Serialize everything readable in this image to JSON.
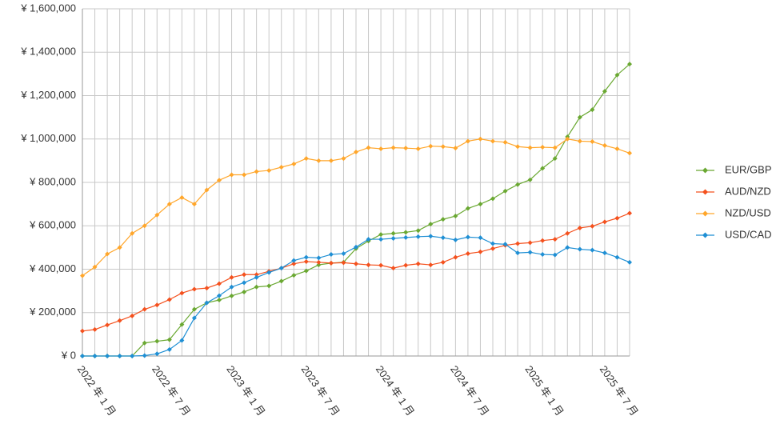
{
  "chart_data": {
    "type": "line",
    "categories": [
      "2022 年 1 月",
      null,
      null,
      null,
      null,
      null,
      "2022 年 7 月",
      null,
      null,
      null,
      null,
      null,
      "2023 年 1 月",
      null,
      null,
      null,
      null,
      null,
      "2023 年 7 月",
      null,
      null,
      null,
      null,
      null,
      "2024 年 1 月",
      null,
      null,
      null,
      null,
      null,
      "2024 年 7 月",
      null,
      null,
      null,
      null,
      null,
      "2025 年 1 月",
      null,
      null,
      null,
      null,
      null,
      "2025 年 7 月",
      null,
      null
    ],
    "ylim": [
      0,
      1600000
    ],
    "yticks": [
      {
        "value": 0,
        "label": "¥ 0"
      },
      {
        "value": 200000,
        "label": "¥ 200,000"
      },
      {
        "value": 400000,
        "label": "¥ 400,000"
      },
      {
        "value": 600000,
        "label": "¥ 600,000"
      },
      {
        "value": 800000,
        "label": "¥ 800,000"
      },
      {
        "value": 1000000,
        "label": "¥ 1,000,000"
      },
      {
        "value": 1200000,
        "label": "¥ 1,200,000"
      },
      {
        "value": 1400000,
        "label": "¥ 1,400,000"
      },
      {
        "value": 1600000,
        "label": "¥ 1,600,000"
      }
    ],
    "grid": true,
    "legend": "right",
    "series": [
      {
        "name": "EUR/GBP",
        "color": "#6aa832",
        "values": [
          0,
          0,
          0,
          0,
          0,
          60000,
          68000,
          75000,
          145000,
          215000,
          245000,
          258000,
          277000,
          295000,
          318000,
          323000,
          345000,
          372000,
          392000,
          420000,
          428000,
          432000,
          495000,
          530000,
          560000,
          565000,
          570000,
          578000,
          608000,
          630000,
          645000,
          680000,
          700000,
          725000,
          760000,
          790000,
          812000,
          865000,
          910000,
          1010000,
          1100000,
          1135000,
          1220000,
          1295000,
          1345000
        ]
      },
      {
        "name": "AUD/NZD",
        "color": "#f4511e",
        "values": [
          115000,
          122000,
          143000,
          163000,
          185000,
          215000,
          235000,
          260000,
          290000,
          308000,
          313000,
          333000,
          362000,
          375000,
          375000,
          390000,
          405000,
          425000,
          435000,
          432000,
          428000,
          430000,
          425000,
          420000,
          418000,
          405000,
          418000,
          425000,
          420000,
          432000,
          455000,
          472000,
          480000,
          495000,
          510000,
          518000,
          522000,
          532000,
          538000,
          565000,
          590000,
          598000,
          618000,
          635000,
          658000
        ]
      },
      {
        "name": "NZD/USD",
        "color": "#ffa62b",
        "values": [
          370000,
          410000,
          470000,
          500000,
          565000,
          600000,
          650000,
          700000,
          730000,
          700000,
          765000,
          810000,
          835000,
          835000,
          850000,
          855000,
          870000,
          885000,
          910000,
          900000,
          900000,
          910000,
          940000,
          960000,
          955000,
          960000,
          958000,
          955000,
          967000,
          965000,
          958000,
          990000,
          1000000,
          990000,
          985000,
          965000,
          960000,
          962000,
          960000,
          1000000,
          990000,
          988000,
          970000,
          955000,
          935000
        ]
      },
      {
        "name": "USD/CAD",
        "color": "#1f8fd4",
        "values": [
          0,
          0,
          0,
          0,
          0,
          2000,
          10000,
          30000,
          72000,
          175000,
          245000,
          278000,
          318000,
          338000,
          362000,
          385000,
          405000,
          440000,
          455000,
          452000,
          468000,
          472000,
          502000,
          538000,
          538000,
          542000,
          546000,
          550000,
          552000,
          545000,
          535000,
          548000,
          545000,
          518000,
          515000,
          475000,
          478000,
          468000,
          466000,
          500000,
          492000,
          488000,
          475000,
          455000,
          432000
        ]
      }
    ]
  }
}
